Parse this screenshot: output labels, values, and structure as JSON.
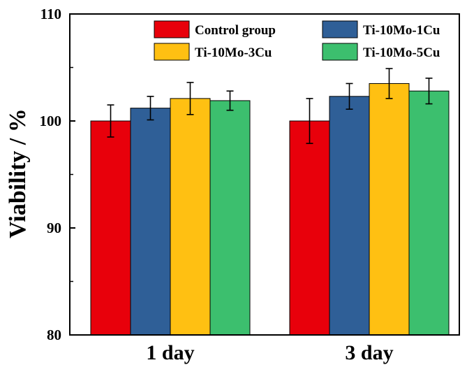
{
  "chart_data": {
    "type": "bar",
    "title": "",
    "xlabel": "",
    "ylabel": "Viability / %",
    "ylim": [
      80,
      110
    ],
    "yticks": [
      80,
      90,
      100,
      110
    ],
    "grid": false,
    "legend_position": "top",
    "categories": [
      "1 day",
      "3 day"
    ],
    "series": [
      {
        "name": "Control group",
        "color": "#e8000b",
        "values": [
          100.0,
          100.0
        ],
        "errors": [
          1.5,
          2.1
        ]
      },
      {
        "name": "Ti-10Mo-1Cu",
        "color": "#2f5f97",
        "values": [
          101.2,
          102.3
        ],
        "errors": [
          1.1,
          1.2
        ]
      },
      {
        "name": "Ti-10Mo-3Cu",
        "color": "#ffc012",
        "values": [
          102.1,
          103.5
        ],
        "errors": [
          1.5,
          1.4
        ]
      },
      {
        "name": "Ti-10Mo-5Cu",
        "color": "#3cbf6e",
        "values": [
          101.9,
          102.8
        ],
        "errors": [
          0.9,
          1.2
        ]
      }
    ]
  }
}
